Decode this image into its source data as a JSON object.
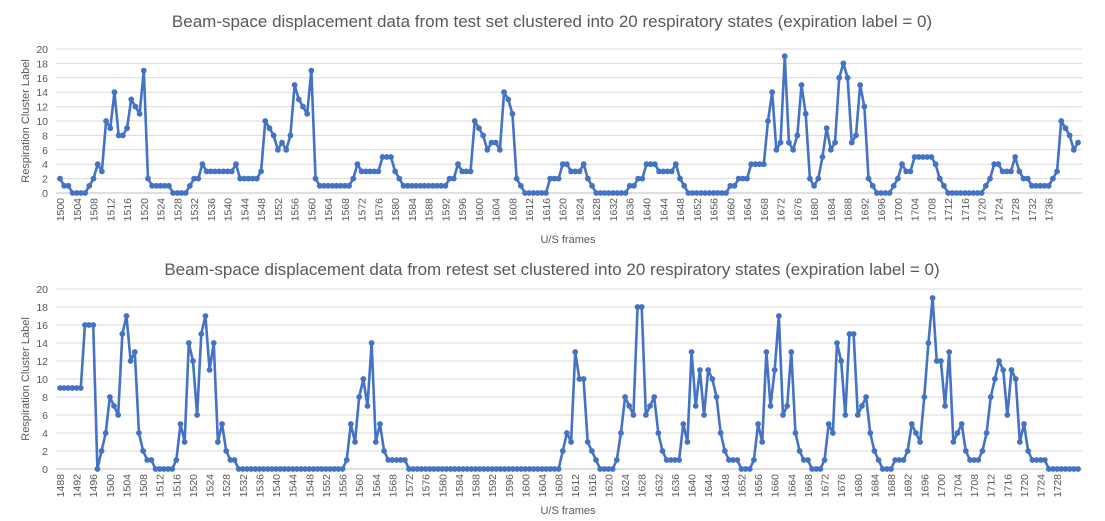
{
  "chart_data": [
    {
      "type": "line",
      "title": "Beam-space displacement data from test set clustered into 20 respiratory states (expiration label = 0)",
      "xlabel": "U/S frames",
      "ylabel": "Respiration Cluster Label",
      "ylim": [
        0,
        20
      ],
      "yticks": [
        0,
        2,
        4,
        6,
        8,
        10,
        12,
        14,
        16,
        18,
        20
      ],
      "x_start": 1500,
      "x_tick_step": 4,
      "x_tick_count": 60,
      "grid": true,
      "color": "#4472c4",
      "values": [
        2,
        1,
        1,
        0,
        0,
        0,
        0,
        1,
        2,
        4,
        3,
        10,
        9,
        14,
        8,
        8,
        9,
        13,
        12,
        11,
        17,
        2,
        1,
        1,
        1,
        1,
        1,
        0,
        0,
        0,
        0,
        1,
        2,
        2,
        4,
        3,
        3,
        3,
        3,
        3,
        3,
        3,
        4,
        2,
        2,
        2,
        2,
        2,
        3,
        10,
        9,
        8,
        6,
        7,
        6,
        8,
        15,
        13,
        12,
        11,
        17,
        2,
        1,
        1,
        1,
        1,
        1,
        1,
        1,
        1,
        2,
        4,
        3,
        3,
        3,
        3,
        3,
        5,
        5,
        5,
        3,
        2,
        1,
        1,
        1,
        1,
        1,
        1,
        1,
        1,
        1,
        1,
        1,
        2,
        2,
        4,
        3,
        3,
        3,
        10,
        9,
        8,
        6,
        7,
        7,
        6,
        14,
        13,
        11,
        2,
        1,
        0,
        0,
        0,
        0,
        0,
        0,
        2,
        2,
        2,
        4,
        4,
        3,
        3,
        3,
        4,
        2,
        1,
        0,
        0,
        0,
        0,
        0,
        0,
        0,
        0,
        1,
        1,
        2,
        2,
        4,
        4,
        4,
        3,
        3,
        3,
        3,
        4,
        2,
        1,
        0,
        0,
        0,
        0,
        0,
        0,
        0,
        0,
        0,
        0,
        1,
        1,
        2,
        2,
        2,
        4,
        4,
        4,
        4,
        10,
        14,
        6,
        7,
        19,
        7,
        6,
        8,
        15,
        11,
        2,
        1,
        2,
        5,
        9,
        6,
        7,
        16,
        18,
        16,
        7,
        8,
        15,
        12,
        2,
        1,
        0,
        0,
        0,
        0,
        1,
        2,
        4,
        3,
        3,
        5,
        5,
        5,
        5,
        5,
        4,
        2,
        1,
        0,
        0,
        0,
        0,
        0,
        0,
        0,
        0,
        0,
        1,
        2,
        4,
        4,
        3,
        3,
        3,
        5,
        3,
        2,
        2,
        1,
        1,
        1,
        1,
        1,
        2,
        3,
        10,
        9,
        8,
        6,
        7
      ]
    },
    {
      "type": "line",
      "title": "Beam-space displacement data from retest set clustered into 20 respiratory states (expiration label = 0)",
      "xlabel": "U/S frames",
      "ylabel": "Respiration Cluster Label",
      "ylim": [
        0,
        20
      ],
      "yticks": [
        0,
        2,
        4,
        6,
        8,
        10,
        12,
        14,
        16,
        18,
        20
      ],
      "x_start": 1488,
      "x_tick_step": 4,
      "x_tick_count": 61,
      "grid": true,
      "color": "#4472c4",
      "values": [
        9,
        9,
        9,
        9,
        9,
        9,
        16,
        16,
        16,
        0,
        2,
        4,
        8,
        7,
        6,
        15,
        17,
        12,
        13,
        4,
        2,
        1,
        1,
        0,
        0,
        0,
        0,
        0,
        1,
        5,
        3,
        14,
        12,
        6,
        15,
        17,
        11,
        14,
        3,
        5,
        2,
        1,
        1,
        0,
        0,
        0,
        0,
        0,
        0,
        0,
        0,
        0,
        0,
        0,
        0,
        0,
        0,
        0,
        0,
        0,
        0,
        0,
        0,
        0,
        0,
        0,
        0,
        0,
        0,
        1,
        5,
        3,
        8,
        10,
        7,
        14,
        3,
        5,
        2,
        1,
        1,
        1,
        1,
        1,
        0,
        0,
        0,
        0,
        0,
        0,
        0,
        0,
        0,
        0,
        0,
        0,
        0,
        0,
        0,
        0,
        0,
        0,
        0,
        0,
        0,
        0,
        0,
        0,
        0,
        0,
        0,
        0,
        0,
        0,
        0,
        0,
        0,
        0,
        0,
        0,
        0,
        2,
        4,
        3,
        13,
        10,
        10,
        3,
        2,
        1,
        0,
        0,
        0,
        0,
        1,
        4,
        8,
        7,
        6,
        18,
        18,
        6,
        7,
        8,
        4,
        2,
        1,
        1,
        1,
        1,
        5,
        3,
        13,
        7,
        11,
        6,
        11,
        10,
        8,
        4,
        2,
        1,
        1,
        1,
        0,
        0,
        0,
        1,
        5,
        3,
        13,
        7,
        11,
        17,
        6,
        7,
        13,
        4,
        2,
        1,
        1,
        0,
        0,
        0,
        1,
        5,
        4,
        14,
        12,
        6,
        15,
        15,
        6,
        7,
        8,
        4,
        2,
        1,
        0,
        0,
        0,
        1,
        1,
        1,
        2,
        5,
        4,
        3,
        8,
        14,
        19,
        12,
        12,
        7,
        13,
        3,
        4,
        5,
        2,
        1,
        1,
        1,
        2,
        4,
        8,
        10,
        12,
        11,
        6,
        11,
        10,
        3,
        5,
        2,
        1,
        1,
        1,
        1,
        0,
        0,
        0,
        0,
        0,
        0,
        0,
        0
      ]
    }
  ]
}
